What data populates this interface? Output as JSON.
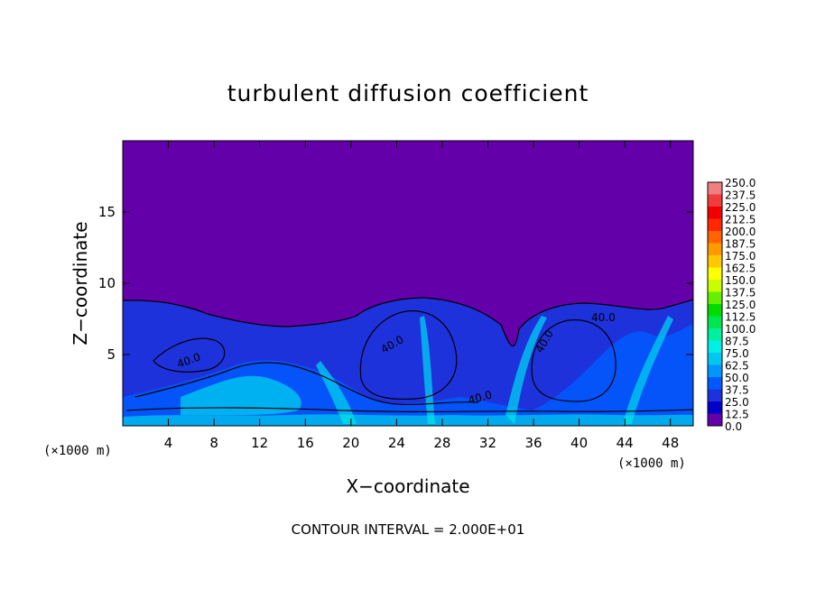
{
  "chart_data": {
    "type": "heatmap",
    "title": "turbulent diffusion coefficient",
    "xlabel": "X−coordinate",
    "ylabel": "Z−coordinate",
    "x_unit_left": "(×1000 m)",
    "x_unit_right": "(×1000 m)",
    "x_ticks": [
      "4",
      "8",
      "12",
      "16",
      "20",
      "24",
      "28",
      "32",
      "36",
      "40",
      "44",
      "48"
    ],
    "y_ticks": [
      "5",
      "10",
      "15"
    ],
    "xlim": [
      0,
      50
    ],
    "ylim": [
      0,
      20
    ],
    "colorbar": {
      "levels": [
        "250.0",
        "237.5",
        "225.0",
        "212.5",
        "200.0",
        "187.5",
        "175.0",
        "162.5",
        "150.0",
        "137.5",
        "125.0",
        "112.5",
        "100.0",
        "87.5",
        "75.0",
        "62.5",
        "50.0",
        "37.5",
        "25.0",
        "12.5",
        "0.0"
      ],
      "colors": [
        "#f08080",
        "#f03c3c",
        "#f00000",
        "#ff2800",
        "#ff6400",
        "#ff9b00",
        "#ffc800",
        "#ffff00",
        "#c8ff00",
        "#64f000",
        "#00dc00",
        "#00e650",
        "#00f0a0",
        "#00f0e6",
        "#00c8f0",
        "#0096ff",
        "#005aff",
        "#1e32dc",
        "#0000c8",
        "#6400aa"
      ]
    },
    "contour_labels": [
      "40.0",
      "40.0",
      "40.0",
      "40.0",
      "40.0"
    ],
    "footer": "CONTOUR INTERVAL = 2.000E+01",
    "regions": {
      "upper_fill_color": "#6400aa",
      "lower_fill_color": "#1e32dc",
      "mixed_layer_top_km": 8.5,
      "domes_center_km": [
        8,
        26,
        42
      ]
    }
  }
}
